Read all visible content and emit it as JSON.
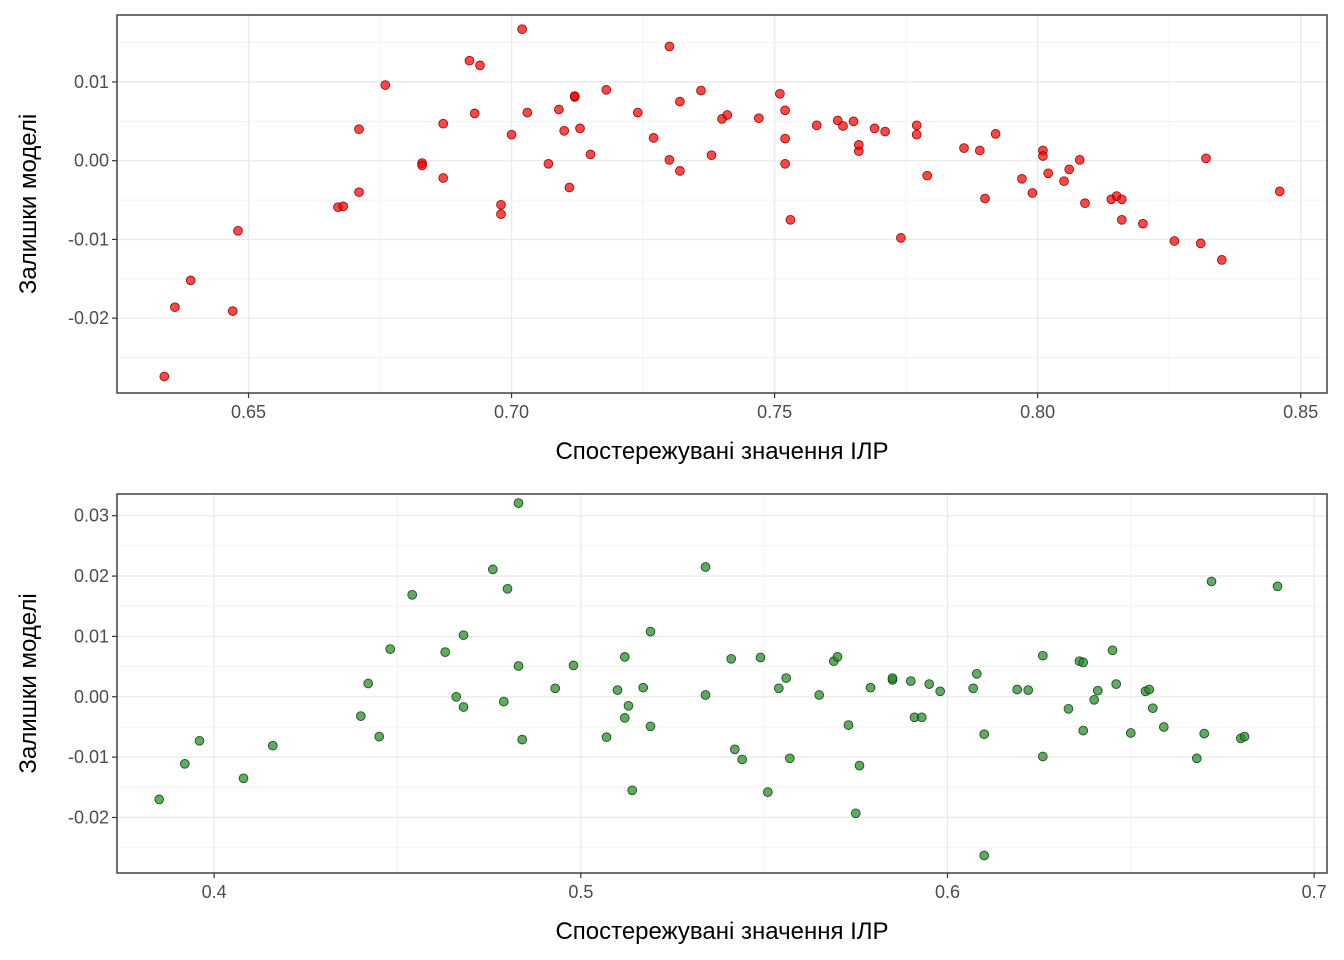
{
  "chart_data": [
    {
      "type": "scatter",
      "xlabel": "Спостережувані значення ІЛР",
      "ylabel": "Залишки моделі",
      "xlim": [
        0.625,
        0.855
      ],
      "ylim": [
        -0.0295,
        0.0185
      ],
      "x_ticks": [
        0.65,
        0.7,
        0.75,
        0.8,
        0.85
      ],
      "x_tick_labels": [
        "0.65",
        "0.70",
        "0.75",
        "0.80",
        "0.85"
      ],
      "y_ticks": [
        -0.02,
        -0.01,
        0.0,
        0.01
      ],
      "y_tick_labels": [
        "-0.02",
        "-0.01",
        "0.00",
        "0.01"
      ],
      "grid": true,
      "point_fill": "#ff0000",
      "point_stroke": "#8b0000",
      "points": [
        [
          0.634,
          -0.0274
        ],
        [
          0.636,
          -0.0186
        ],
        [
          0.639,
          -0.0152
        ],
        [
          0.647,
          -0.0191
        ],
        [
          0.648,
          -0.0089
        ],
        [
          0.667,
          -0.0059
        ],
        [
          0.668,
          -0.0058
        ],
        [
          0.671,
          0.004
        ],
        [
          0.671,
          -0.004
        ],
        [
          0.676,
          0.0096
        ],
        [
          0.683,
          -0.0003
        ],
        [
          0.683,
          -0.0006
        ],
        [
          0.687,
          0.0047
        ],
        [
          0.687,
          -0.0022
        ],
        [
          0.692,
          0.0127
        ],
        [
          0.693,
          0.006
        ],
        [
          0.694,
          0.0121
        ],
        [
          0.698,
          -0.0056
        ],
        [
          0.698,
          -0.0068
        ],
        [
          0.7,
          0.0033
        ],
        [
          0.702,
          0.0167
        ],
        [
          0.703,
          0.0061
        ],
        [
          0.707,
          -0.0004
        ],
        [
          0.709,
          0.0065
        ],
        [
          0.71,
          0.0038
        ],
        [
          0.711,
          -0.0034
        ],
        [
          0.712,
          0.0081
        ],
        [
          0.712,
          0.0082
        ],
        [
          0.713,
          0.0041
        ],
        [
          0.715,
          0.0008
        ],
        [
          0.718,
          0.009
        ],
        [
          0.724,
          0.0061
        ],
        [
          0.727,
          0.0029
        ],
        [
          0.73,
          0.0001
        ],
        [
          0.73,
          0.0145
        ],
        [
          0.732,
          0.0075
        ],
        [
          0.732,
          -0.0013
        ],
        [
          0.736,
          0.0089
        ],
        [
          0.738,
          0.0007
        ],
        [
          0.74,
          0.0053
        ],
        [
          0.741,
          0.0058
        ],
        [
          0.747,
          0.0054
        ],
        [
          0.751,
          0.0085
        ],
        [
          0.752,
          0.0064
        ],
        [
          0.752,
          0.0028
        ],
        [
          0.752,
          -0.0004
        ],
        [
          0.753,
          -0.0075
        ],
        [
          0.758,
          0.0045
        ],
        [
          0.762,
          0.0051
        ],
        [
          0.763,
          0.0044
        ],
        [
          0.765,
          0.005
        ],
        [
          0.766,
          0.0012
        ],
        [
          0.766,
          0.002
        ],
        [
          0.769,
          0.0041
        ],
        [
          0.771,
          0.0037
        ],
        [
          0.774,
          -0.0098
        ],
        [
          0.777,
          0.0033
        ],
        [
          0.777,
          0.0045
        ],
        [
          0.779,
          -0.0019
        ],
        [
          0.786,
          0.0016
        ],
        [
          0.789,
          0.0013
        ],
        [
          0.79,
          -0.0048
        ],
        [
          0.792,
          0.0034
        ],
        [
          0.797,
          -0.0023
        ],
        [
          0.799,
          -0.0041
        ],
        [
          0.801,
          0.0013
        ],
        [
          0.801,
          0.0006
        ],
        [
          0.802,
          -0.0016
        ],
        [
          0.805,
          -0.0026
        ],
        [
          0.806,
          -0.0011
        ],
        [
          0.808,
          0.0001
        ],
        [
          0.809,
          -0.0054
        ],
        [
          0.814,
          -0.0049
        ],
        [
          0.815,
          -0.0045
        ],
        [
          0.816,
          -0.0049
        ],
        [
          0.816,
          -0.0075
        ],
        [
          0.82,
          -0.008
        ],
        [
          0.826,
          -0.0102
        ],
        [
          0.831,
          -0.0105
        ],
        [
          0.832,
          0.0003
        ],
        [
          0.835,
          -0.0126
        ],
        [
          0.846,
          -0.0039
        ]
      ]
    },
    {
      "type": "scatter",
      "xlabel": "Спостережувані значення ІЛР",
      "ylabel": "Залишки моделі",
      "xlim": [
        0.3735,
        0.7035
      ],
      "ylim": [
        -0.0292,
        0.0336
      ],
      "x_ticks": [
        0.4,
        0.5,
        0.6,
        0.7
      ],
      "x_tick_labels": [
        "0.4",
        "0.5",
        "0.6",
        "0.7"
      ],
      "y_ticks": [
        -0.02,
        -0.01,
        0.0,
        0.01,
        0.02,
        0.03
      ],
      "y_tick_labels": [
        "-0.02",
        "-0.01",
        "0.00",
        "0.01",
        "0.02",
        "0.03"
      ],
      "grid": true,
      "point_fill": "#228b22",
      "point_stroke": "#0f3f0f",
      "points": [
        [
          0.385,
          -0.017
        ],
        [
          0.392,
          -0.0111
        ],
        [
          0.396,
          -0.0073
        ],
        [
          0.408,
          -0.0135
        ],
        [
          0.416,
          -0.0081
        ],
        [
          0.44,
          -0.0032
        ],
        [
          0.442,
          0.0022
        ],
        [
          0.445,
          -0.0066
        ],
        [
          0.448,
          0.0079
        ],
        [
          0.454,
          0.0169
        ],
        [
          0.463,
          0.0074
        ],
        [
          0.466,
          0.0
        ],
        [
          0.468,
          -0.0017
        ],
        [
          0.468,
          0.0102
        ],
        [
          0.476,
          0.0211
        ],
        [
          0.479,
          -0.0008
        ],
        [
          0.48,
          0.0179
        ],
        [
          0.483,
          0.0051
        ],
        [
          0.483,
          0.0321
        ],
        [
          0.484,
          -0.0071
        ],
        [
          0.493,
          0.0014
        ],
        [
          0.498,
          0.0052
        ],
        [
          0.507,
          -0.0067
        ],
        [
          0.51,
          0.0011
        ],
        [
          0.512,
          0.0066
        ],
        [
          0.512,
          -0.0035
        ],
        [
          0.513,
          -0.0015
        ],
        [
          0.514,
          -0.0155
        ],
        [
          0.517,
          0.0015
        ],
        [
          0.519,
          0.0108
        ],
        [
          0.519,
          -0.0049
        ],
        [
          0.534,
          0.0215
        ],
        [
          0.534,
          0.0003
        ],
        [
          0.541,
          0.0063
        ],
        [
          0.542,
          -0.0087
        ],
        [
          0.544,
          -0.0104
        ],
        [
          0.549,
          0.0065
        ],
        [
          0.551,
          -0.0158
        ],
        [
          0.554,
          0.0014
        ],
        [
          0.556,
          0.0031
        ],
        [
          0.557,
          -0.0102
        ],
        [
          0.565,
          0.0003
        ],
        [
          0.569,
          0.0059
        ],
        [
          0.57,
          0.0066
        ],
        [
          0.573,
          -0.0047
        ],
        [
          0.575,
          -0.0193
        ],
        [
          0.576,
          -0.0114
        ],
        [
          0.579,
          0.0015
        ],
        [
          0.585,
          0.0028
        ],
        [
          0.585,
          0.0031
        ],
        [
          0.59,
          0.0026
        ],
        [
          0.591,
          -0.0034
        ],
        [
          0.593,
          -0.0034
        ],
        [
          0.595,
          0.0021
        ],
        [
          0.598,
          0.0009
        ],
        [
          0.607,
          0.0014
        ],
        [
          0.608,
          0.0038
        ],
        [
          0.61,
          -0.0263
        ],
        [
          0.61,
          -0.0062
        ],
        [
          0.619,
          0.0012
        ],
        [
          0.622,
          0.0011
        ],
        [
          0.626,
          -0.0099
        ],
        [
          0.626,
          0.0068
        ],
        [
          0.633,
          -0.002
        ],
        [
          0.636,
          0.0059
        ],
        [
          0.637,
          0.0057
        ],
        [
          0.637,
          -0.0056
        ],
        [
          0.64,
          -0.0005
        ],
        [
          0.641,
          0.001
        ],
        [
          0.645,
          0.0077
        ],
        [
          0.646,
          0.0021
        ],
        [
          0.65,
          -0.006
        ],
        [
          0.654,
          0.0009
        ],
        [
          0.655,
          0.0012
        ],
        [
          0.656,
          -0.0019
        ],
        [
          0.659,
          -0.005
        ],
        [
          0.668,
          -0.0102
        ],
        [
          0.67,
          -0.0061
        ],
        [
          0.672,
          0.0191
        ],
        [
          0.68,
          -0.0069
        ],
        [
          0.681,
          -0.0066
        ],
        [
          0.69,
          0.0183
        ]
      ]
    }
  ]
}
